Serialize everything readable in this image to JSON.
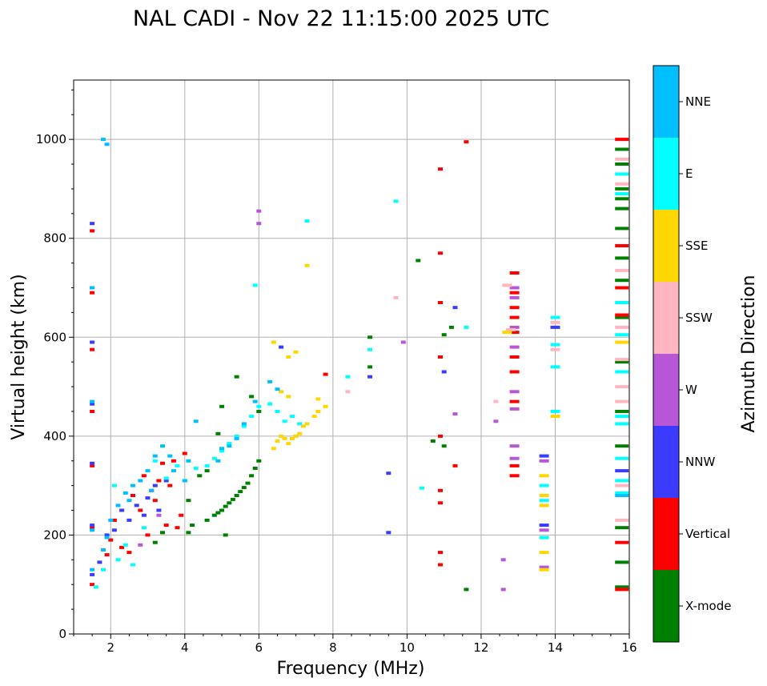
{
  "chart_data": {
    "type": "scatter",
    "title": "NAL CADI - Nov 22 11:15:00 2025 UTC",
    "xlabel": "Frequency (MHz)",
    "ylabel": "Virtual height (km)",
    "xlim": [
      1,
      16
    ],
    "ylim": [
      0,
      1120
    ],
    "xticks": [
      2,
      4,
      6,
      8,
      10,
      12,
      14,
      16
    ],
    "yticks": [
      0,
      200,
      400,
      600,
      800,
      1000
    ],
    "grid": true,
    "colorbar": {
      "label": "Azimuth Direction",
      "position": "right",
      "categories": [
        {
          "name": "X-mode",
          "color": "#008000"
        },
        {
          "name": "Vertical",
          "color": "#ff0000"
        },
        {
          "name": "NNW",
          "color": "#3b3bff"
        },
        {
          "name": "W",
          "color": "#b757d8"
        },
        {
          "name": "SSW",
          "color": "#ffb6c1"
        },
        {
          "name": "SSE",
          "color": "#ffd700"
        },
        {
          "name": "E",
          "color": "#00ffff"
        },
        {
          "name": "NNE",
          "color": "#00bfff"
        }
      ]
    },
    "series": [
      {
        "name": "X-mode",
        "points": [
          [
            4.6,
            230
          ],
          [
            4.8,
            240
          ],
          [
            4.9,
            245
          ],
          [
            5.0,
            250
          ],
          [
            5.1,
            258
          ],
          [
            5.2,
            265
          ],
          [
            5.3,
            272
          ],
          [
            5.4,
            280
          ],
          [
            5.5,
            288
          ],
          [
            5.6,
            296
          ],
          [
            5.7,
            305
          ],
          [
            5.8,
            320
          ],
          [
            5.9,
            335
          ],
          [
            6.0,
            350
          ],
          [
            3.2,
            185
          ],
          [
            3.4,
            205
          ],
          [
            4.1,
            205
          ],
          [
            4.1,
            270
          ],
          [
            4.2,
            220
          ],
          [
            4.4,
            320
          ],
          [
            4.6,
            330
          ],
          [
            5.1,
            200
          ],
          [
            4.9,
            405
          ],
          [
            5.0,
            460
          ],
          [
            5.4,
            520
          ],
          [
            5.8,
            480
          ],
          [
            6.0,
            450
          ],
          [
            10.3,
            755
          ],
          [
            10.7,
            390
          ],
          [
            11.0,
            380
          ],
          [
            11.2,
            620
          ],
          [
            11.0,
            605
          ],
          [
            11.6,
            90
          ],
          [
            9.0,
            600
          ],
          [
            9.0,
            540
          ],
          [
            15.8,
            95
          ],
          [
            15.8,
            145
          ],
          [
            15.8,
            215
          ],
          [
            15.8,
            380
          ],
          [
            15.8,
            450
          ],
          [
            15.8,
            550
          ],
          [
            15.8,
            640
          ],
          [
            15.8,
            715
          ],
          [
            15.8,
            760
          ],
          [
            15.8,
            820
          ],
          [
            15.8,
            860
          ],
          [
            15.8,
            880
          ],
          [
            15.8,
            900
          ],
          [
            15.8,
            950
          ],
          [
            15.8,
            980
          ]
        ]
      },
      {
        "name": "Vertical",
        "points": [
          [
            1.5,
            100
          ],
          [
            1.5,
            215
          ],
          [
            1.5,
            340
          ],
          [
            1.5,
            450
          ],
          [
            1.5,
            575
          ],
          [
            1.5,
            690
          ],
          [
            1.5,
            815
          ],
          [
            1.9,
            160
          ],
          [
            2.0,
            190
          ],
          [
            2.1,
            230
          ],
          [
            2.3,
            175
          ],
          [
            2.5,
            165
          ],
          [
            2.6,
            280
          ],
          [
            2.8,
            250
          ],
          [
            2.9,
            320
          ],
          [
            3.0,
            200
          ],
          [
            3.1,
            290
          ],
          [
            3.2,
            270
          ],
          [
            3.3,
            310
          ],
          [
            3.4,
            345
          ],
          [
            3.5,
            220
          ],
          [
            3.6,
            300
          ],
          [
            3.7,
            350
          ],
          [
            3.8,
            215
          ],
          [
            3.9,
            240
          ],
          [
            4.0,
            365
          ],
          [
            7.8,
            525
          ],
          [
            10.9,
            140
          ],
          [
            10.9,
            165
          ],
          [
            10.9,
            265
          ],
          [
            10.9,
            290
          ],
          [
            10.9,
            400
          ],
          [
            10.9,
            560
          ],
          [
            10.9,
            670
          ],
          [
            10.9,
            770
          ],
          [
            10.9,
            940
          ],
          [
            11.3,
            340
          ],
          [
            11.6,
            995
          ],
          [
            12.9,
            320
          ],
          [
            12.9,
            340
          ],
          [
            12.9,
            470
          ],
          [
            12.9,
            530
          ],
          [
            12.9,
            560
          ],
          [
            12.9,
            610
          ],
          [
            12.9,
            640
          ],
          [
            12.9,
            660
          ],
          [
            12.9,
            690
          ],
          [
            12.9,
            730
          ],
          [
            15.8,
            90
          ],
          [
            15.8,
            185
          ],
          [
            15.8,
            645
          ],
          [
            15.8,
            700
          ],
          [
            15.8,
            785
          ],
          [
            15.8,
            1000
          ]
        ]
      },
      {
        "name": "NNW",
        "points": [
          [
            1.5,
            120
          ],
          [
            1.5,
            220
          ],
          [
            1.5,
            345
          ],
          [
            1.5,
            465
          ],
          [
            1.5,
            590
          ],
          [
            1.5,
            700
          ],
          [
            1.5,
            830
          ],
          [
            1.7,
            145
          ],
          [
            1.9,
            200
          ],
          [
            2.1,
            210
          ],
          [
            2.3,
            250
          ],
          [
            2.5,
            230
          ],
          [
            2.7,
            260
          ],
          [
            2.9,
            240
          ],
          [
            3.0,
            275
          ],
          [
            3.2,
            300
          ],
          [
            3.3,
            250
          ],
          [
            3.5,
            310
          ],
          [
            6.6,
            580
          ],
          [
            9.0,
            520
          ],
          [
            9.5,
            325
          ],
          [
            9.5,
            205
          ],
          [
            11.0,
            530
          ],
          [
            11.3,
            660
          ],
          [
            13.7,
            360
          ],
          [
            14.0,
            620
          ],
          [
            15.8,
            330
          ],
          [
            13.7,
            220
          ]
        ]
      },
      {
        "name": "W",
        "points": [
          [
            2.8,
            180
          ],
          [
            3.3,
            240
          ],
          [
            6.0,
            830
          ],
          [
            6.0,
            855
          ],
          [
            9.9,
            590
          ],
          [
            11.3,
            445
          ],
          [
            12.4,
            430
          ],
          [
            12.6,
            90
          ],
          [
            12.6,
            150
          ],
          [
            12.9,
            380
          ],
          [
            12.9,
            355
          ],
          [
            12.9,
            490
          ],
          [
            12.9,
            580
          ],
          [
            12.9,
            620
          ],
          [
            12.9,
            680
          ],
          [
            12.9,
            700
          ],
          [
            12.9,
            455
          ],
          [
            13.7,
            135
          ],
          [
            13.7,
            210
          ],
          [
            13.7,
            350
          ]
        ]
      },
      {
        "name": "SSW",
        "points": [
          [
            8.4,
            490
          ],
          [
            9.7,
            680
          ],
          [
            12.4,
            470
          ],
          [
            12.7,
            705
          ],
          [
            12.8,
            615
          ],
          [
            14.0,
            575
          ],
          [
            14.0,
            630
          ],
          [
            15.8,
            230
          ],
          [
            15.8,
            300
          ],
          [
            15.8,
            470
          ],
          [
            15.8,
            500
          ],
          [
            15.8,
            555
          ],
          [
            15.8,
            620
          ],
          [
            15.8,
            735
          ],
          [
            15.8,
            910
          ],
          [
            15.8,
            960
          ]
        ]
      },
      {
        "name": "SSE",
        "points": [
          [
            6.4,
            375
          ],
          [
            6.5,
            390
          ],
          [
            6.6,
            400
          ],
          [
            6.7,
            395
          ],
          [
            6.8,
            385
          ],
          [
            6.9,
            395
          ],
          [
            7.0,
            400
          ],
          [
            7.1,
            405
          ],
          [
            7.2,
            420
          ],
          [
            7.3,
            425
          ],
          [
            7.5,
            440
          ],
          [
            7.6,
            450
          ],
          [
            7.8,
            460
          ],
          [
            7.6,
            475
          ],
          [
            6.4,
            590
          ],
          [
            6.8,
            560
          ],
          [
            7.0,
            570
          ],
          [
            7.3,
            745
          ],
          [
            6.6,
            490
          ],
          [
            6.8,
            480
          ],
          [
            12.7,
            610
          ],
          [
            13.7,
            130
          ],
          [
            13.7,
            165
          ],
          [
            13.7,
            260
          ],
          [
            13.7,
            280
          ],
          [
            13.7,
            320
          ],
          [
            14.0,
            440
          ],
          [
            15.8,
            590
          ]
        ]
      },
      {
        "name": "E",
        "points": [
          [
            1.6,
            95
          ],
          [
            1.8,
            130
          ],
          [
            2.1,
            300
          ],
          [
            2.2,
            150
          ],
          [
            2.4,
            180
          ],
          [
            2.6,
            140
          ],
          [
            2.9,
            215
          ],
          [
            3.2,
            350
          ],
          [
            3.5,
            315
          ],
          [
            3.8,
            340
          ],
          [
            4.0,
            310
          ],
          [
            4.3,
            335
          ],
          [
            4.6,
            340
          ],
          [
            4.8,
            355
          ],
          [
            5.0,
            370
          ],
          [
            5.2,
            385
          ],
          [
            5.4,
            400
          ],
          [
            5.6,
            420
          ],
          [
            5.8,
            440
          ],
          [
            6.0,
            460
          ],
          [
            6.3,
            465
          ],
          [
            6.5,
            450
          ],
          [
            6.7,
            430
          ],
          [
            6.9,
            440
          ],
          [
            7.1,
            425
          ],
          [
            7.3,
            835
          ],
          [
            5.9,
            705
          ],
          [
            8.4,
            520
          ],
          [
            9.0,
            575
          ],
          [
            9.7,
            875
          ],
          [
            10.4,
            295
          ],
          [
            11.6,
            620
          ],
          [
            13.7,
            195
          ],
          [
            13.7,
            270
          ],
          [
            13.7,
            300
          ],
          [
            14.0,
            450
          ],
          [
            14.0,
            540
          ],
          [
            14.0,
            585
          ],
          [
            14.0,
            640
          ],
          [
            15.8,
            285
          ],
          [
            15.8,
            310
          ],
          [
            15.8,
            355
          ],
          [
            15.8,
            425
          ],
          [
            15.8,
            440
          ],
          [
            15.8,
            530
          ],
          [
            15.8,
            605
          ],
          [
            15.8,
            670
          ],
          [
            15.8,
            930
          ],
          [
            15.8,
            890
          ]
        ]
      },
      {
        "name": "NNE",
        "points": [
          [
            1.5,
            130
          ],
          [
            1.5,
            210
          ],
          [
            1.5,
            470
          ],
          [
            1.5,
            700
          ],
          [
            1.8,
            170
          ],
          [
            1.9,
            195
          ],
          [
            2.0,
            230
          ],
          [
            2.2,
            260
          ],
          [
            2.4,
            285
          ],
          [
            2.5,
            270
          ],
          [
            2.6,
            300
          ],
          [
            2.8,
            310
          ],
          [
            3.0,
            330
          ],
          [
            3.1,
            290
          ],
          [
            3.2,
            360
          ],
          [
            3.4,
            380
          ],
          [
            3.6,
            360
          ],
          [
            3.7,
            330
          ],
          [
            4.0,
            310
          ],
          [
            4.1,
            350
          ],
          [
            4.3,
            430
          ],
          [
            4.9,
            350
          ],
          [
            5.0,
            375
          ],
          [
            5.2,
            380
          ],
          [
            5.4,
            395
          ],
          [
            5.6,
            425
          ],
          [
            5.9,
            470
          ],
          [
            6.3,
            510
          ],
          [
            6.5,
            495
          ],
          [
            1.8,
            1000
          ],
          [
            1.9,
            990
          ],
          [
            15.8,
            280
          ]
        ]
      }
    ]
  }
}
